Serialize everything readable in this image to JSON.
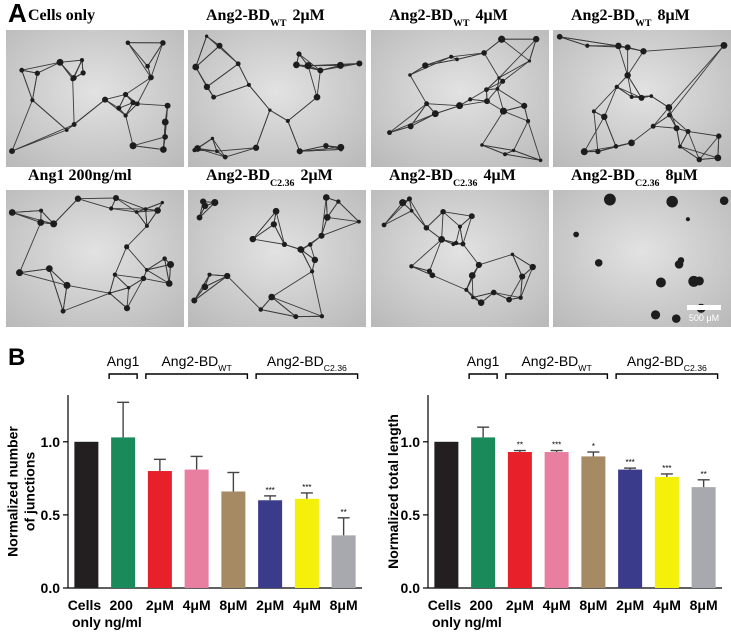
{
  "panel_a": {
    "label": "A",
    "images": [
      {
        "name": "Cells only"
      },
      {
        "name": "Ang2-BD",
        "sub": "WT",
        "dose": "2μM"
      },
      {
        "name": "Ang2-BD",
        "sub": "WT",
        "dose": "4μM"
      },
      {
        "name": "Ang2-BD",
        "sub": "WT",
        "dose": "8μM"
      },
      {
        "name": "Ang1 200ng/ml"
      },
      {
        "name": "Ang2-BD",
        "sub": "C2.36",
        "dose": "2μM"
      },
      {
        "name": "Ang2-BD",
        "sub": "C2.36",
        "dose": "4μM"
      },
      {
        "name": "Ang2-BD",
        "sub": "C2.36",
        "dose": "8μM"
      }
    ],
    "scale_bar": "500 μM"
  },
  "panel_b": {
    "label": "B"
  },
  "chart_data": [
    {
      "type": "bar",
      "ylabel": [
        "Normalized number",
        "of junctions"
      ],
      "categories": [
        "Cells only",
        "200 ng/ml",
        "2μM",
        "4μM",
        "8μM",
        "2μM",
        "4μM",
        "8μM"
      ],
      "values": [
        1.0,
        1.03,
        0.8,
        0.81,
        0.66,
        0.6,
        0.61,
        0.36
      ],
      "errors": [
        0,
        0.24,
        0.08,
        0.09,
        0.13,
        0.03,
        0.04,
        0.12
      ],
      "annotations": [
        null,
        null,
        null,
        null,
        null,
        "***",
        "***",
        "**"
      ],
      "colors": [
        "#231f20",
        "#1a8a5a",
        "#e8202a",
        "#e87fa0",
        "#a68a64",
        "#3b3b8c",
        "#f5f00a",
        "#a8a9ae"
      ],
      "groups": [
        {
          "name": "Ang1",
          "from": 1,
          "to": 1
        },
        {
          "name": "Ang2-BD",
          "sub": "WT",
          "from": 2,
          "to": 4
        },
        {
          "name": "Ang2-BD",
          "sub": "C2.36",
          "from": 5,
          "to": 7
        }
      ],
      "ylim": [
        0,
        1.32
      ],
      "yticks": [
        {
          "value": 0,
          "label": "0.0"
        },
        0.5,
        {
          "value": 1,
          "label": "1.0"
        }
      ]
    },
    {
      "type": "bar",
      "ylabel": [
        "Normalized total length"
      ],
      "categories": [
        "Cells only",
        "200 ng/ml",
        "2μM",
        "4μM",
        "8μM",
        "2μM",
        "4μM",
        "8μM"
      ],
      "values": [
        1.0,
        1.03,
        0.93,
        0.93,
        0.9,
        0.81,
        0.76,
        0.69
      ],
      "errors": [
        0,
        0.07,
        0.01,
        0.01,
        0.03,
        0.01,
        0.02,
        0.05
      ],
      "annotations": [
        null,
        null,
        "**",
        "***",
        "*",
        "***",
        "***",
        "**"
      ],
      "colors": [
        "#231f20",
        "#1a8a5a",
        "#e8202a",
        "#e87fa0",
        "#a68a64",
        "#3b3b8c",
        "#f5f00a",
        "#a8a9ae"
      ],
      "groups": [
        {
          "name": "Ang1",
          "from": 1,
          "to": 1
        },
        {
          "name": "Ang2-BD",
          "sub": "WT",
          "from": 2,
          "to": 4
        },
        {
          "name": "Ang2-BD",
          "sub": "C2.36",
          "from": 5,
          "to": 7
        }
      ],
      "ylim": [
        0,
        1.32
      ],
      "yticks": [
        {
          "value": 0,
          "label": "0.0"
        },
        0.5,
        {
          "value": 1,
          "label": "1.0"
        }
      ]
    }
  ]
}
